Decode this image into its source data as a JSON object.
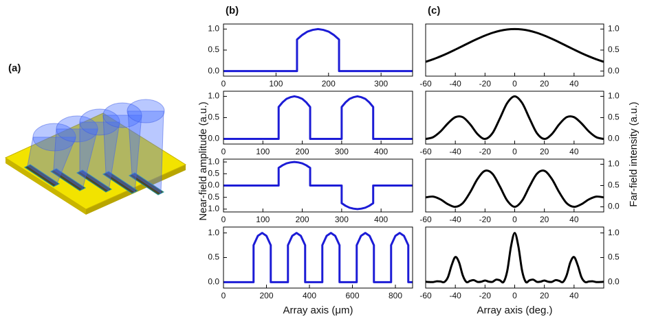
{
  "panel_labels": [
    "(a)",
    "(b)",
    "(c)"
  ],
  "near_field_label": "Near-field amplitude (a.u.)",
  "far_field_label": "Far-field intensity (a.u.)",
  "chart_data": [
    {
      "type": "line",
      "xlim": [
        0,
        360
      ],
      "ylim": [
        -0.12,
        1.12
      ],
      "xticks": [
        0,
        100,
        200,
        300
      ],
      "yticks": [
        {
          "value": 0,
          "label": "0.0"
        },
        0.5,
        {
          "value": 1,
          "label": "1.0"
        }
      ],
      "x": [
        0,
        140,
        140,
        150,
        160,
        170,
        180,
        190,
        200,
        210,
        220,
        220,
        360
      ],
      "series": [
        {
          "color": "#1c1cd6",
          "values": [
            0,
            0,
            0.75,
            0.86,
            0.94,
            0.98,
            1,
            0.98,
            0.94,
            0.86,
            0.75,
            0,
            0
          ]
        }
      ]
    },
    {
      "type": "line",
      "xlim": [
        0,
        480
      ],
      "ylim": [
        -0.12,
        1.12
      ],
      "xticks": [
        0,
        100,
        200,
        300,
        400
      ],
      "yticks": [
        {
          "value": 0,
          "label": "0.0"
        },
        0.5,
        {
          "value": 1,
          "label": "1.0"
        }
      ],
      "x": [
        0,
        140,
        140,
        150,
        160,
        170,
        180,
        190,
        200,
        210,
        220,
        220,
        300,
        300,
        310,
        320,
        330,
        340,
        350,
        360,
        370,
        380,
        380,
        480
      ],
      "series": [
        {
          "color": "#1c1cd6",
          "values": [
            0,
            0,
            0.75,
            0.86,
            0.94,
            0.98,
            1,
            0.98,
            0.94,
            0.86,
            0.75,
            0,
            0,
            0.75,
            0.86,
            0.94,
            0.98,
            1,
            0.98,
            0.94,
            0.86,
            0.75,
            0,
            0
          ]
        }
      ]
    },
    {
      "type": "line",
      "xlim": [
        0,
        480
      ],
      "ylim": [
        -1.12,
        1.12
      ],
      "xticks": [
        0,
        100,
        200,
        300,
        400
      ],
      "yticks": [
        {
          "value": -1,
          "label": "1.0"
        },
        {
          "value": -0.5,
          "label": "0.5"
        },
        {
          "value": 0,
          "label": "0.0"
        },
        0.5,
        {
          "value": 1,
          "label": "1.0"
        }
      ],
      "x": [
        0,
        140,
        140,
        150,
        160,
        170,
        180,
        190,
        200,
        210,
        220,
        220,
        300,
        300,
        310,
        320,
        330,
        340,
        350,
        360,
        370,
        380,
        380,
        480
      ],
      "series": [
        {
          "color": "#1c1cd6",
          "values": [
            0,
            0,
            0.75,
            0.86,
            0.94,
            0.98,
            1,
            0.98,
            0.94,
            0.86,
            0.75,
            0,
            0,
            -0.75,
            -0.86,
            -0.94,
            -0.98,
            -1,
            -0.98,
            -0.94,
            -0.86,
            -0.75,
            0,
            0
          ]
        }
      ]
    },
    {
      "type": "line",
      "xlim": [
        0,
        880
      ],
      "ylim": [
        -0.12,
        1.12
      ],
      "xticks": [
        0,
        200,
        400,
        600,
        800
      ],
      "yticks": [
        {
          "value": 0,
          "label": "0.0"
        },
        0.5,
        {
          "value": 1,
          "label": "1.0"
        }
      ],
      "x_label": "Array axis (μm)",
      "x": [
        0,
        140,
        140,
        160,
        180,
        200,
        220,
        220,
        300,
        300,
        320,
        340,
        360,
        380,
        380,
        460,
        460,
        480,
        500,
        520,
        540,
        540,
        620,
        620,
        640,
        660,
        680,
        700,
        700,
        780,
        780,
        800,
        820,
        840,
        860,
        860,
        880
      ],
      "series": [
        {
          "color": "#1c1cd6",
          "values": [
            0,
            0,
            0.75,
            0.94,
            1,
            0.94,
            0.75,
            0,
            0,
            0.75,
            0.94,
            1,
            0.94,
            0.75,
            0,
            0,
            0.75,
            0.94,
            1,
            0.94,
            0.75,
            0,
            0,
            0.75,
            0.94,
            1,
            0.94,
            0.75,
            0,
            0,
            0.75,
            0.94,
            1,
            0.94,
            0.75,
            0,
            0
          ]
        }
      ]
    },
    {
      "type": "line",
      "smooth": true,
      "xlim": [
        -60,
        60
      ],
      "y2lim": [
        -0.12,
        1.12
      ],
      "xticks": [
        -60,
        -40,
        -20,
        0,
        20,
        40
      ],
      "y2ticks": [
        {
          "value": 0,
          "label": "0.0"
        },
        0.5,
        {
          "value": 1,
          "label": "1.0"
        }
      ],
      "x": [
        -60,
        -55,
        -50,
        -45,
        -40,
        -35,
        -30,
        -25,
        -20,
        -15,
        -10,
        -5,
        0,
        5,
        10,
        15,
        20,
        25,
        30,
        35,
        40,
        45,
        50,
        55,
        60
      ],
      "series": [
        {
          "color": "#000000",
          "axis": "y2",
          "values": [
            0.221,
            0.281,
            0.35,
            0.427,
            0.511,
            0.598,
            0.686,
            0.769,
            0.845,
            0.91,
            0.959,
            0.99,
            1,
            0.99,
            0.959,
            0.91,
            0.845,
            0.769,
            0.686,
            0.598,
            0.511,
            0.427,
            0.35,
            0.281,
            0.221
          ]
        }
      ]
    },
    {
      "type": "line",
      "smooth": true,
      "xlim": [
        -60,
        60
      ],
      "y2lim": [
        -0.12,
        1.12
      ],
      "xticks": [
        -60,
        -40,
        -20,
        0,
        20,
        40
      ],
      "y2ticks": [
        {
          "value": 0,
          "label": "0.0"
        },
        0.5,
        {
          "value": 1,
          "label": "1.0"
        }
      ],
      "x": [
        -60,
        -55,
        -50,
        -45,
        -40,
        -35,
        -30,
        -25,
        -20,
        -15,
        -10,
        -5,
        0,
        5,
        10,
        15,
        20,
        25,
        30,
        35,
        40,
        45,
        50,
        55,
        60
      ],
      "series": [
        {
          "color": "#000000",
          "axis": "y2",
          "values": [
            0,
            0.041,
            0.175,
            0.365,
            0.511,
            0.511,
            0.343,
            0.112,
            0,
            0.133,
            0.48,
            0.845,
            1,
            0.845,
            0.48,
            0.133,
            0,
            0.112,
            0.343,
            0.511,
            0.511,
            0.365,
            0.175,
            0.041,
            0
          ]
        }
      ]
    },
    {
      "type": "line",
      "smooth": true,
      "xlim": [
        -60,
        60
      ],
      "y2lim": [
        -0.12,
        1.12
      ],
      "xticks": [
        -60,
        -40,
        -20,
        0,
        20,
        40
      ],
      "y2ticks": [
        {
          "value": 0,
          "label": "0.0"
        },
        0.5,
        {
          "value": 1,
          "label": "1.0"
        }
      ],
      "x": [
        -60,
        -55,
        -50,
        -45,
        -40,
        -35,
        -30,
        -25,
        -20,
        -15,
        -10,
        -5,
        0,
        5,
        10,
        15,
        20,
        25,
        30,
        35,
        40,
        45,
        50,
        55,
        60
      ],
      "series": [
        {
          "color": "#000000",
          "axis": "y2",
          "values": [
            0.221,
            0.24,
            0.175,
            0.062,
            0,
            0.087,
            0.343,
            0.657,
            0.845,
            0.777,
            0.48,
            0.145,
            0,
            0.145,
            0.48,
            0.777,
            0.845,
            0.657,
            0.343,
            0.087,
            0,
            0.062,
            0.175,
            0.24,
            0.221
          ]
        }
      ]
    },
    {
      "type": "line",
      "smooth": true,
      "xlim": [
        -60,
        60
      ],
      "y2lim": [
        -0.12,
        1.12
      ],
      "xticks": [
        -60,
        -40,
        -20,
        0,
        20,
        40
      ],
      "y2ticks": [
        {
          "value": 0,
          "label": "0.0"
        },
        0.5,
        {
          "value": 1,
          "label": "1.0"
        }
      ],
      "x_label": "Array axis (deg.)",
      "x": [
        -60,
        -57.5,
        -55,
        -52.5,
        -50,
        -47.5,
        -45,
        -42.5,
        -40,
        -37.5,
        -35,
        -32.5,
        -30,
        -27.5,
        -25,
        -22.5,
        -20,
        -17.5,
        -15,
        -12.5,
        -10,
        -7.5,
        -5,
        -2.5,
        0,
        2.5,
        5,
        7.5,
        10,
        12.5,
        15,
        17.5,
        20,
        22.5,
        25,
        27.5,
        30,
        32.5,
        35,
        37.5,
        40,
        42.5,
        45,
        47.5,
        50,
        52.5,
        55,
        57.5,
        60
      ],
      "series": [
        {
          "color": "#000000",
          "axis": "y2",
          "values": [
            0.009,
            0.003,
            0.002,
            0.017,
            0.014,
            0.002,
            0.099,
            0.341,
            0.511,
            0.403,
            0.139,
            0.003,
            0.027,
            0.041,
            0.005,
            0.01,
            0.034,
            0.011,
            0.006,
            0.052,
            0.038,
            0.005,
            0.231,
            0.725,
            1,
            0.725,
            0.231,
            0.005,
            0.038,
            0.052,
            0.006,
            0.011,
            0.034,
            0.01,
            0.005,
            0.041,
            0.027,
            0.003,
            0.139,
            0.403,
            0.511,
            0.341,
            0.099,
            0.002,
            0.014,
            0.017,
            0.002,
            0.003,
            0.009
          ]
        }
      ]
    }
  ]
}
